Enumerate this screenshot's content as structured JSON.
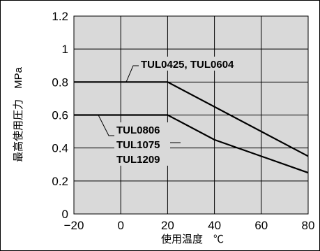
{
  "chart_data": {
    "type": "line",
    "xlabel": "使用温度　℃",
    "ylabel": "最高使用圧力　MPa",
    "xlim": [
      -20,
      80
    ],
    "ylim": [
      0,
      1.2
    ],
    "x_ticks": [
      "−20",
      "0",
      "20",
      "40",
      "60",
      "80"
    ],
    "y_ticks": [
      "0",
      "0.2",
      "0.4",
      "0.6",
      "0.8",
      "1",
      "1.2"
    ],
    "grid": true,
    "series": [
      {
        "name": "TUL0425, TUL0604",
        "points": [
          [
            -20,
            0.8
          ],
          [
            20,
            0.8
          ],
          [
            80,
            0.35
          ]
        ]
      },
      {
        "name": "TUL0806\nTUL1075\nTUL1209",
        "points": [
          [
            -20,
            0.6
          ],
          [
            20,
            0.6
          ],
          [
            40,
            0.45
          ],
          [
            80,
            0.25
          ]
        ]
      }
    ],
    "annotations": [
      {
        "lines": [
          "TUL0425, TUL0604"
        ],
        "series_index": 0
      },
      {
        "lines": [
          "TUL0806",
          "TUL1075",
          "TUL1209"
        ],
        "series_index": 1
      }
    ]
  }
}
